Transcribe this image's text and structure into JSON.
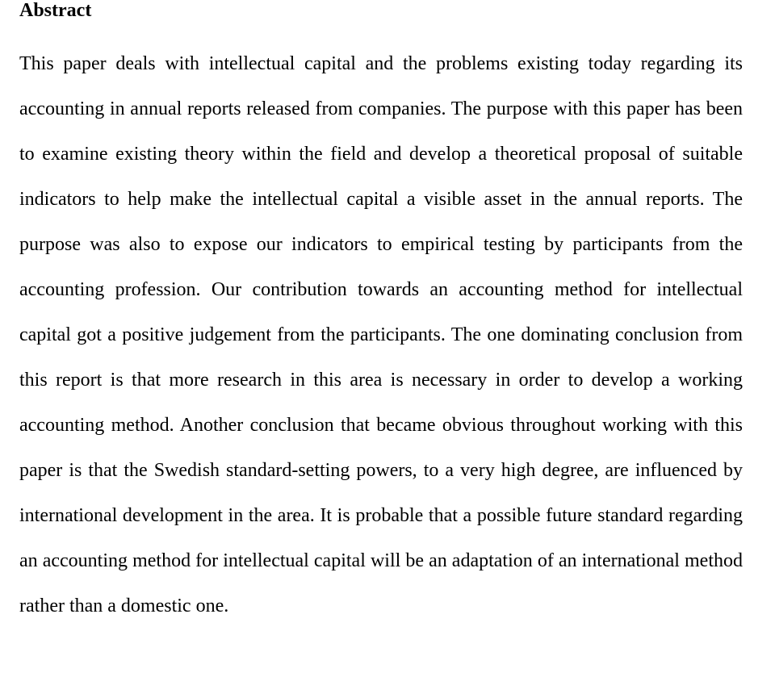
{
  "doc": {
    "background_color": "#ffffff",
    "text_color": "#000000",
    "font_family": "Times New Roman, Times, serif",
    "heading_fontsize": 24,
    "heading_fontweight": "bold",
    "body_fontsize": 24,
    "line_height": 56,
    "text_align": "justify",
    "heading": "Abstract",
    "paragraph": "This paper deals with intellectual capital and the problems existing today regarding its accounting in annual reports released from companies. The purpose with this paper has been to examine existing theory within the field and develop a theoretical proposal of suitable indicators to help make the intellectual capital a visible asset in the annual reports. The purpose was also to expose our indicators to empirical testing by participants from the accounting profession. Our contribution towards an accounting method for intellectual capital got a positive judgement from the participants. The one dominating conclusion from this report is that more research in this area is necessary in order to develop a working accounting method. Another conclusion that became obvious throughout working with this paper is that the Swedish standard-setting powers, to a very high degree, are influenced by international development in the area. It is probable that a possible future standard regarding an accounting method for intellectual capital will be an adaptation of an international method rather than a domestic one."
  }
}
